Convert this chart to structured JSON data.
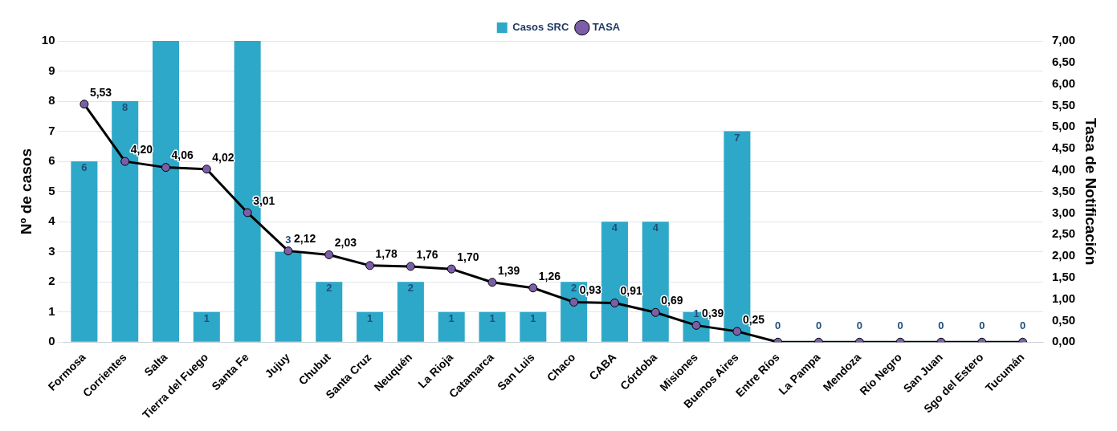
{
  "chart_data": {
    "type": "bar",
    "ylabel": "Nº de casos",
    "y2label": "Tasa de Notificación",
    "categories": [
      "Formosa",
      "Corrientes",
      "Salta",
      "Tierra del Fuego",
      "Santa Fe",
      "Jujuy",
      "Chubut",
      "Santa Cruz",
      "Neuquén",
      "La Rioja",
      "Catamarca",
      "San Luis",
      "Chaco",
      "CABA",
      "Córdoba",
      "Misiones",
      "Buenos Aires",
      "Entre Ríos",
      "La Pampa",
      "Mendoza",
      "Río Negro",
      "San Juan",
      "Sgo del Estero",
      "Tucumán"
    ],
    "series": [
      {
        "name": "Casos SRC",
        "color": "#2ea8c8",
        "values": [
          6,
          8,
          10,
          1,
          10,
          3,
          2,
          1,
          2,
          1,
          1,
          1,
          2,
          4,
          4,
          1,
          7,
          0,
          0,
          0,
          0,
          0,
          0,
          0
        ],
        "value_labels": [
          "6",
          "8",
          null,
          "1",
          null,
          "3",
          "2",
          "1",
          "2",
          "1",
          "1",
          "1",
          "2",
          "4",
          "4",
          "1",
          "7",
          "0",
          "0",
          "0",
          "0",
          "0",
          "0",
          "0"
        ]
      },
      {
        "name": "TASA",
        "type": "line",
        "axis": "y2",
        "color": "#000000",
        "values": [
          5.53,
          4.2,
          4.06,
          4.02,
          3.01,
          2.12,
          2.03,
          1.78,
          1.76,
          1.7,
          1.39,
          1.26,
          0.93,
          0.91,
          0.69,
          0.39,
          0.25,
          0,
          0,
          0,
          0,
          0,
          0,
          0
        ],
        "value_labels": [
          "5,53",
          "4,20",
          "4,06",
          "4,02",
          "3,01",
          "2,12",
          "2,03",
          "1,78",
          "1,76",
          "1,70",
          "1,39",
          "1,26",
          "0,93",
          "0,91",
          "0,69",
          "0,39",
          "0,25",
          null,
          null,
          null,
          null,
          null,
          null,
          null
        ]
      }
    ],
    "ylim": [
      0,
      10
    ],
    "yticks": [
      0,
      1,
      2,
      3,
      4,
      5,
      6,
      7,
      8,
      9,
      10
    ],
    "y2lim": [
      0,
      7
    ],
    "y2ticks": [
      {
        "value": 0,
        "label": "0,00"
      },
      {
        "value": 0.5,
        "label": "0,50"
      },
      {
        "value": 1,
        "label": "1,00"
      },
      {
        "value": 1.5,
        "label": "1,50"
      },
      {
        "value": 2,
        "label": "2,00"
      },
      {
        "value": 2.5,
        "label": "2,50"
      },
      {
        "value": 3,
        "label": "3,00"
      },
      {
        "value": 3.5,
        "label": "3,50"
      },
      {
        "value": 4,
        "label": "4,00"
      },
      {
        "value": 4.5,
        "label": "4,50"
      },
      {
        "value": 5,
        "label": "5,00"
      },
      {
        "value": 5.5,
        "label": "5,50"
      },
      {
        "value": 6,
        "label": "6,00"
      },
      {
        "value": 6.5,
        "label": "6,50"
      },
      {
        "value": 7,
        "label": "7,00"
      }
    ],
    "grid": "y",
    "legend": "top",
    "marker": "circle",
    "line_style": "solid"
  }
}
